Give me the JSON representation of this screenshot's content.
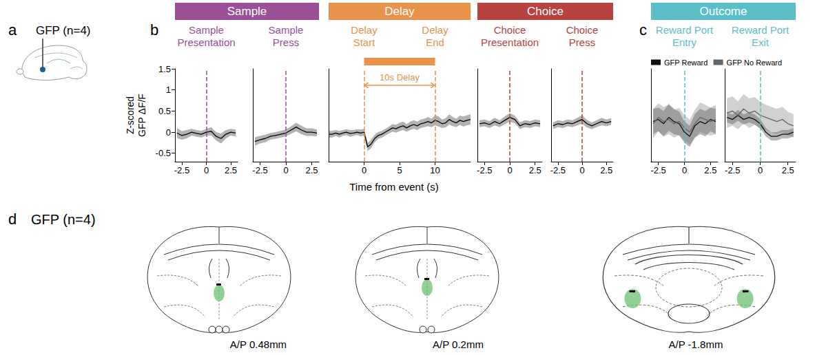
{
  "panel_letters": [
    "a",
    "b",
    "c",
    "d"
  ],
  "headers": [
    {
      "text": "Sample",
      "color": "#9b4f96"
    },
    {
      "text": "Delay",
      "color": "#e8924a"
    },
    {
      "text": "Choice",
      "color": "#b7423f"
    },
    {
      "text": "Outcome",
      "color": "#5bbfc9"
    }
  ],
  "x_axis_title": "Time from event (s)",
  "diagrams": {
    "a": {
      "label": "GFP (n=4)"
    },
    "d": {
      "label": "GFP (n=4)",
      "sections": [
        "A/P 0.48mm",
        "A/P 0.2mm",
        "A/P -1.8mm"
      ]
    }
  },
  "chart_data": [
    {
      "type": "line",
      "events": [
        {
          "x": 0,
          "label": "Sample Presentation",
          "color": "#9b4f96"
        }
      ],
      "y_label": "Z-scored GFP ΔF/F",
      "x": [
        -3,
        -2.5,
        -2,
        -1.5,
        -1,
        -0.5,
        0,
        0.5,
        1,
        1.5,
        2,
        2.5,
        3
      ],
      "values": [
        -0.02,
        -0.08,
        -0.05,
        0.0,
        -0.03,
        -0.05,
        0.0,
        0.02,
        -0.1,
        -0.15,
        -0.05,
        0.0,
        -0.02
      ],
      "sem": [
        0.12,
        0.1,
        0.1,
        0.08,
        0.08,
        0.08,
        0.08,
        0.1,
        0.1,
        0.12,
        0.1,
        0.08,
        0.08
      ],
      "color": "#000000",
      "xlim": [
        -3.2,
        3.2
      ],
      "xticks": [
        -2.5,
        0,
        2.5
      ],
      "ylim": [
        -0.7,
        1.5
      ],
      "yticks": [
        -0.5,
        0,
        0.5,
        1,
        1.5
      ],
      "grid": false,
      "tick_labels": true
    },
    {
      "type": "line",
      "events": [
        {
          "x": 0,
          "label": "Sample Press",
          "color": "#9b4f96"
        }
      ],
      "x": [
        -3,
        -2.5,
        -2,
        -1.5,
        -1,
        -0.5,
        0,
        0.5,
        1,
        1.5,
        2,
        2.5,
        3
      ],
      "values": [
        -0.22,
        -0.18,
        -0.15,
        -0.1,
        -0.08,
        -0.05,
        -0.02,
        0.05,
        0.12,
        0.05,
        0.0,
        0.0,
        -0.02
      ],
      "sem": [
        0.1,
        0.09,
        0.09,
        0.08,
        0.08,
        0.08,
        0.08,
        0.09,
        0.1,
        0.1,
        0.09,
        0.09,
        0.08
      ],
      "color": "#000000",
      "xlim": [
        -3.2,
        3.2
      ],
      "xticks": [
        -2.5,
        0,
        2.5
      ],
      "ylim": [
        -0.7,
        1.5
      ],
      "yticks": [
        -0.5,
        0,
        0.5,
        1,
        1.5
      ],
      "grid": false,
      "tick_labels": "x"
    },
    {
      "type": "line",
      "events": [
        {
          "x": 0,
          "label": "Delay Start",
          "color": "#e8924a"
        },
        {
          "x": 10,
          "label": "Delay End",
          "color": "#e8924a"
        }
      ],
      "annotation": {
        "text": "10s Delay",
        "start": 0,
        "end": 10,
        "color": "#e8924a"
      },
      "x": [
        -5,
        -4.5,
        -4,
        -3.5,
        -3,
        -2.5,
        -2,
        -1.5,
        -1,
        -0.5,
        0,
        0.5,
        1,
        1.5,
        2,
        2.5,
        3,
        3.5,
        4,
        4.5,
        5,
        5.5,
        6,
        6.5,
        7,
        7.5,
        8,
        8.5,
        9,
        9.5,
        10,
        10.5,
        11,
        11.5,
        12,
        12.5,
        13,
        13.5,
        14,
        14.5,
        15
      ],
      "values": [
        -0.05,
        -0.05,
        -0.02,
        -0.05,
        -0.02,
        0.0,
        -0.03,
        -0.02,
        0.0,
        -0.02,
        0.0,
        -0.35,
        -0.28,
        -0.15,
        -0.08,
        -0.05,
        0.0,
        0.05,
        0.1,
        0.08,
        0.12,
        0.15,
        0.1,
        0.15,
        0.18,
        0.15,
        0.2,
        0.22,
        0.25,
        0.22,
        0.28,
        0.25,
        0.2,
        0.22,
        0.3,
        0.25,
        0.22,
        0.28,
        0.25,
        0.28,
        0.3
      ],
      "sem": [
        0.08,
        0.08,
        0.07,
        0.08,
        0.07,
        0.07,
        0.08,
        0.07,
        0.07,
        0.08,
        0.08,
        0.1,
        0.1,
        0.09,
        0.08,
        0.08,
        0.08,
        0.08,
        0.09,
        0.09,
        0.1,
        0.1,
        0.09,
        0.1,
        0.1,
        0.1,
        0.1,
        0.1,
        0.11,
        0.1,
        0.12,
        0.12,
        0.1,
        0.11,
        0.12,
        0.11,
        0.1,
        0.11,
        0.12,
        0.12,
        0.12
      ],
      "color": "#000000",
      "xlim": [
        -5,
        15
      ],
      "xticks": [
        0,
        5,
        10
      ],
      "ylim": [
        -0.7,
        1.5
      ],
      "yticks": [
        -0.5,
        0,
        0.5,
        1,
        1.5
      ],
      "grid": false,
      "tick_labels": "x"
    },
    {
      "type": "line",
      "events": [
        {
          "x": 0,
          "label": "Choice Presentation",
          "color": "#b7423f"
        }
      ],
      "x": [
        -3,
        -2.5,
        -2,
        -1.5,
        -1,
        -0.5,
        0,
        0.5,
        1,
        1.5,
        2,
        2.5,
        3
      ],
      "values": [
        0.2,
        0.22,
        0.18,
        0.25,
        0.2,
        0.28,
        0.35,
        0.3,
        0.15,
        0.2,
        0.18,
        0.22,
        0.2
      ],
      "sem": [
        0.08,
        0.08,
        0.08,
        0.09,
        0.08,
        0.09,
        0.1,
        0.09,
        0.08,
        0.08,
        0.08,
        0.08,
        0.08
      ],
      "color": "#000000",
      "xlim": [
        -3.2,
        3.2
      ],
      "xticks": [
        -2.5,
        0,
        2.5
      ],
      "ylim": [
        -0.7,
        1.5
      ],
      "yticks": [
        -0.5,
        0,
        0.5,
        1,
        1.5
      ],
      "grid": false,
      "tick_labels": "x"
    },
    {
      "type": "line",
      "events": [
        {
          "x": 0,
          "label": "Choice Press",
          "color": "#b7423f"
        }
      ],
      "x": [
        -3,
        -2.5,
        -2,
        -1.5,
        -1,
        -0.5,
        0,
        0.5,
        1,
        1.5,
        2,
        2.5,
        3
      ],
      "values": [
        0.15,
        0.2,
        0.18,
        0.22,
        0.2,
        0.25,
        0.3,
        0.2,
        0.15,
        0.2,
        0.25,
        0.22,
        0.25
      ],
      "sem": [
        0.08,
        0.08,
        0.08,
        0.08,
        0.08,
        0.09,
        0.1,
        0.09,
        0.08,
        0.08,
        0.09,
        0.08,
        0.08
      ],
      "color": "#000000",
      "xlim": [
        -3.2,
        3.2
      ],
      "xticks": [
        -2.5,
        0,
        2.5
      ],
      "ylim": [
        -0.7,
        1.5
      ],
      "yticks": [
        -0.5,
        0,
        0.5,
        1,
        1.5
      ],
      "grid": false,
      "tick_labels": "x"
    },
    {
      "type": "line",
      "events": [
        {
          "x": 0,
          "label": "Reward Port Entry",
          "color": "#5bbfc9"
        }
      ],
      "legend": "top",
      "x": [
        -3,
        -2.5,
        -2,
        -1.5,
        -1,
        -0.5,
        0,
        0.5,
        1,
        1.5,
        2,
        2.5,
        3
      ],
      "series": [
        {
          "name": "GFP Reward",
          "color": "#111111",
          "values": [
            0.25,
            0.3,
            0.2,
            0.35,
            0.25,
            0.2,
            0.0,
            -0.1,
            0.15,
            0.25,
            0.2,
            0.3,
            0.25
          ],
          "sem": [
            0.3,
            0.28,
            0.3,
            0.32,
            0.3,
            0.28,
            0.25,
            0.25,
            0.28,
            0.3,
            0.3,
            0.28,
            0.3
          ]
        },
        {
          "name": "GFP No Reward",
          "color": "#666666",
          "values": [
            0.2,
            0.35,
            0.25,
            0.3,
            0.2,
            0.25,
            0.1,
            0.0,
            0.2,
            0.35,
            0.3,
            0.25,
            0.3
          ],
          "sem": [
            0.35,
            0.33,
            0.35,
            0.35,
            0.33,
            0.32,
            0.3,
            0.3,
            0.33,
            0.35,
            0.35,
            0.33,
            0.35
          ]
        }
      ],
      "xlim": [
        -3.2,
        3.2
      ],
      "xticks": [
        -2.5,
        0,
        2.5
      ],
      "ylim": [
        -0.7,
        1.5
      ],
      "yticks": [
        -0.5,
        0,
        0.5,
        1,
        1.5
      ],
      "grid": false,
      "tick_labels": "x"
    },
    {
      "type": "line",
      "events": [
        {
          "x": 0,
          "label": "Reward Port Exit",
          "color": "#5bbfc9"
        }
      ],
      "x": [
        -3,
        -2.5,
        -2,
        -1.5,
        -1,
        -0.5,
        0,
        0.5,
        1,
        1.5,
        2,
        2.5,
        3
      ],
      "series": [
        {
          "name": "GFP Reward",
          "color": "#111111",
          "values": [
            0.35,
            0.3,
            0.4,
            0.3,
            0.35,
            0.3,
            0.2,
            0.0,
            -0.1,
            -0.1,
            -0.05,
            -0.05,
            0.0
          ],
          "sem": [
            0.12,
            0.12,
            0.13,
            0.12,
            0.12,
            0.12,
            0.11,
            0.1,
            0.1,
            0.1,
            0.1,
            0.1,
            0.1
          ]
        },
        {
          "name": "GFP No Reward",
          "color": "#666666",
          "values": [
            0.45,
            0.5,
            0.4,
            0.55,
            0.45,
            0.5,
            0.4,
            0.35,
            0.3,
            0.25,
            0.3,
            0.2,
            0.15
          ],
          "sem": [
            0.35,
            0.35,
            0.33,
            0.35,
            0.35,
            0.33,
            0.32,
            0.3,
            0.3,
            0.3,
            0.3,
            0.28,
            0.28
          ]
        }
      ],
      "xlim": [
        -3.2,
        3.2
      ],
      "xticks": [
        -2.5,
        0,
        2.5
      ],
      "ylim": [
        -0.7,
        1.5
      ],
      "yticks": [
        -0.5,
        0,
        0.5,
        1,
        1.5
      ],
      "grid": false,
      "tick_labels": "x"
    }
  ]
}
